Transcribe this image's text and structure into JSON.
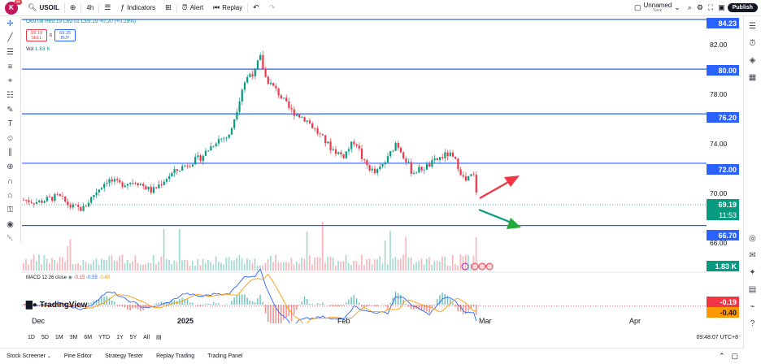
{
  "topbar": {
    "avatar_letter": "K",
    "notif_count": "11",
    "symbol": "USOIL",
    "interval": "4h",
    "indicators_label": "Indicators",
    "alert_label": "Alert",
    "replay_label": "Replay",
    "layout_name": "Unnamed",
    "layout_status": "Save",
    "publish_label": "Publish"
  },
  "legend": {
    "ohlc": "O69.08 H69.19 L69.01 C69.19 +0.20 (+0.29%)",
    "sell_price": "69.19",
    "sell_label": "SELL",
    "spread": "6",
    "buy_price": "69.25",
    "buy_label": "BUY",
    "vol_label": "Vol",
    "vol_value": "1.83 K",
    "macd_label": "MACD 12 26 close",
    "macd_v1": "-0.15",
    "macd_v2": "-0.59",
    "macd_v3": "-0.40"
  },
  "price_axis": {
    "labels": [
      "82.00",
      "78.00",
      "74.00",
      "70.00",
      "66.00"
    ],
    "hline_tags": [
      "84.23",
      "80.00",
      "76.20",
      "72.00",
      "66.70"
    ],
    "current_price": "69.19",
    "countdown": "11:53",
    "volume_tag": "1.83 K",
    "macd_tag1": "-0.19",
    "macd_tag2": "-0.40"
  },
  "time_axis": {
    "labels": [
      "Dec",
      "2025",
      "Feb",
      "Mar",
      "Apr"
    ]
  },
  "ranges": [
    "1D",
    "5D",
    "1M",
    "3M",
    "6M",
    "YTD",
    "1Y",
    "5Y",
    "All"
  ],
  "timezone": "09:48:07 UTC+8",
  "watermark": "TradingView",
  "bottombar": [
    "Stock Screener",
    "Pine Editor",
    "Strategy Tester",
    "Replay Trading",
    "Trading Panel"
  ],
  "colors": {
    "up": "#089981",
    "down": "#f23645",
    "hline": "#2962ff",
    "macd": "#2962ff",
    "signal": "#ff9800"
  },
  "chart_data": {
    "type": "candlestick",
    "symbol": "USOIL",
    "interval": "4h",
    "ylim": [
      65.5,
      84.5
    ],
    "horizontal_levels": [
      84.23,
      80.0,
      76.2,
      72.0,
      66.7
    ],
    "last_price": 69.19,
    "annotations": [
      "up arrow (red)",
      "down arrow (green)"
    ]
  }
}
